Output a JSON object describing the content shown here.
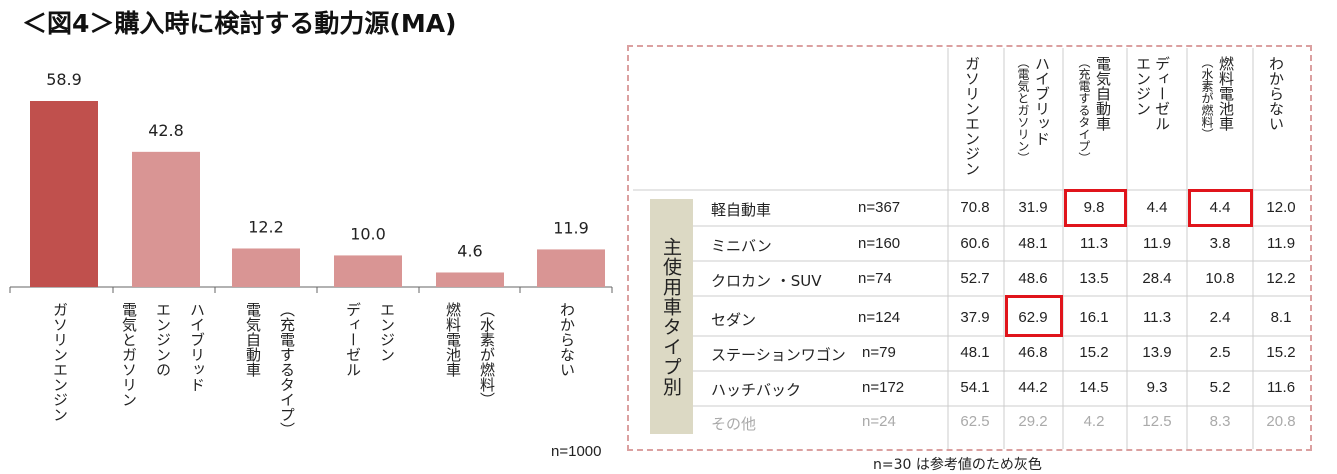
{
  "title": "＜図4＞購入時に検討する動力源(MA)",
  "chart_data": [
    {
      "type": "bar",
      "categories": [
        "ガソリンエンジン",
        "ハイブリッド\nエンジンの\n電気とガソリン",
        "（充電するタイプ）\n電気自動車",
        "エンジン\nディーゼル",
        "（水素が燃料）\n燃料電池車",
        "わからない"
      ],
      "values": [
        58.9,
        42.8,
        12.2,
        10.0,
        4.6,
        11.9
      ],
      "value_labels": [
        "58.9",
        "42.8",
        "12.2",
        "10.0",
        "4.6",
        "11.9"
      ],
      "colors": [
        "#c0504d",
        "#d99594",
        "#d99594",
        "#d99594",
        "#d99594",
        "#d99594"
      ],
      "ylim": [
        0,
        65
      ],
      "n_label": "n=1000"
    },
    {
      "type": "table",
      "group_label": "主使用車タイプ別",
      "columns": [
        {
          "label": "ガソリンエンジン",
          "sub": ""
        },
        {
          "label": "ハイブリッド",
          "sub": "（電気とガソリン）"
        },
        {
          "label": "電気自動車",
          "sub": "（充電するタイプ）"
        },
        {
          "label": "ディーゼル",
          "sub": "エンジン"
        },
        {
          "label": "燃料電池車",
          "sub": "（水素が燃料）"
        },
        {
          "label": "わからない",
          "sub": ""
        }
      ],
      "rows": [
        {
          "name": "軽自動車",
          "n": "n=367",
          "values": [
            "70.8",
            "31.9",
            "9.8",
            "4.4",
            "4.4",
            "12.0"
          ],
          "gray": false
        },
        {
          "name": "ミニバン",
          "n": "n=160",
          "values": [
            "60.6",
            "48.1",
            "11.3",
            "11.9",
            "3.8",
            "11.9"
          ],
          "gray": false
        },
        {
          "name": "クロカン ・SUV",
          "n": "n=74",
          "values": [
            "52.7",
            "48.6",
            "13.5",
            "28.4",
            "10.8",
            "12.2"
          ],
          "gray": false
        },
        {
          "name": "セダン",
          "n": "n=124",
          "values": [
            "37.9",
            "62.9",
            "16.1",
            "11.3",
            "2.4",
            "8.1"
          ],
          "gray": false
        },
        {
          "name": "ステーションワゴン",
          "n": "n=79",
          "values": [
            "48.1",
            "46.8",
            "15.2",
            "13.9",
            "2.5",
            "15.2"
          ],
          "gray": false
        },
        {
          "name": "ハッチバック",
          "n": "n=172",
          "values": [
            "54.1",
            "44.2",
            "14.5",
            "9.3",
            "5.2",
            "11.6"
          ],
          "gray": false
        },
        {
          "name": "その他",
          "n": "n=24",
          "values": [
            "62.5",
            "29.2",
            "4.2",
            "12.5",
            "8.3",
            "20.8"
          ],
          "gray": true
        }
      ],
      "highlighted_cells": [
        [
          0,
          2
        ],
        [
          0,
          4
        ],
        [
          3,
          1
        ]
      ],
      "highlight_color": "#e0141b",
      "note": "n=30 は参考値のため灰色"
    }
  ]
}
